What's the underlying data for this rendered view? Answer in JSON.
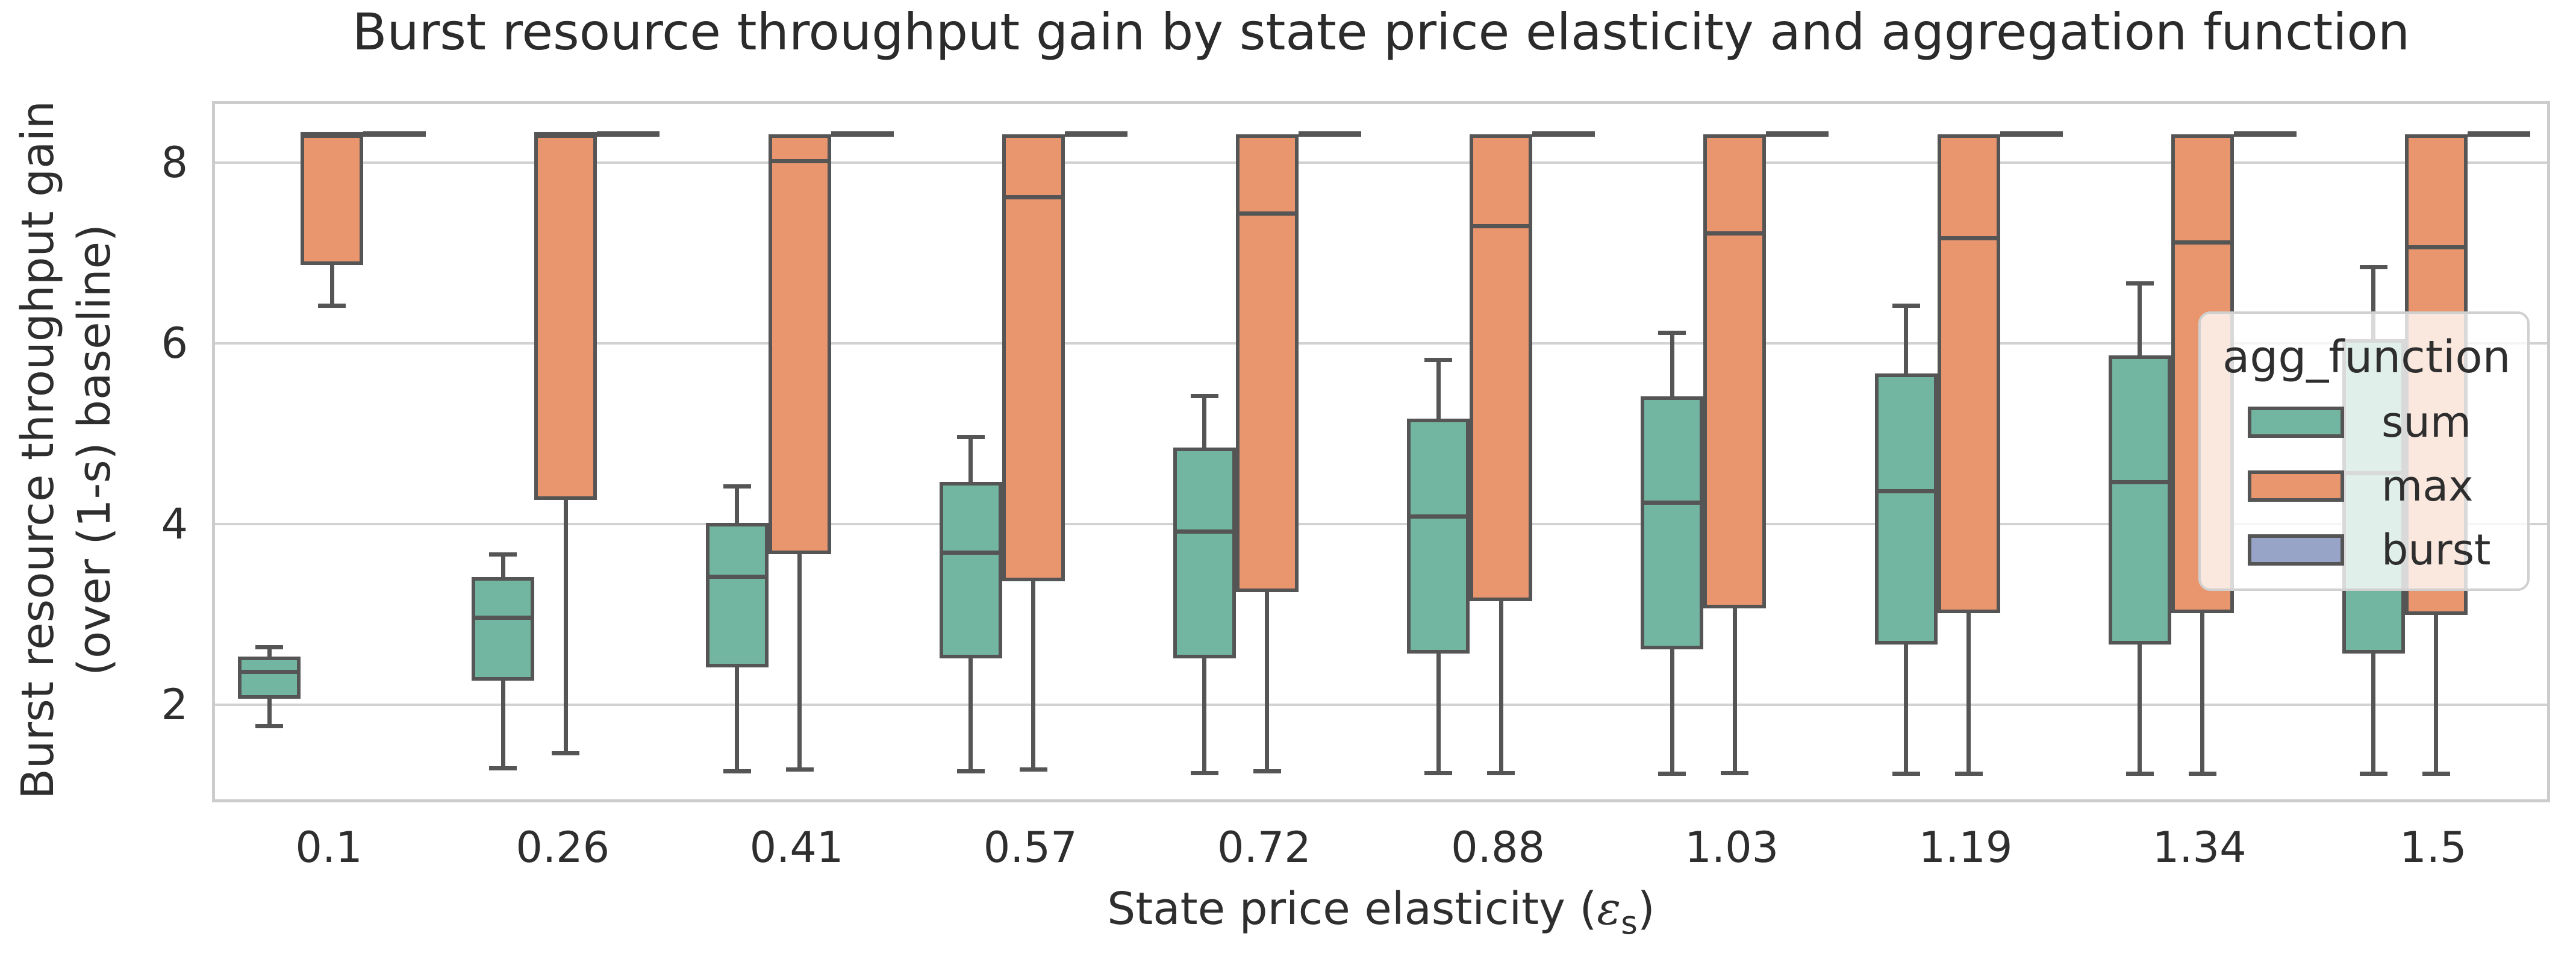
{
  "chart_data": {
    "type": "box",
    "title": "Burst resource throughput gain by state price elasticity and aggregation function",
    "xlabel": {
      "prefix": "State price elasticity (",
      "symbol": "ε",
      "subscript": "s",
      "suffix": ")"
    },
    "ylabel_lines": [
      "Burst resource throughput gain",
      "(over (1-s) baseline)"
    ],
    "categories": [
      "0.1",
      "0.26",
      "0.41",
      "0.57",
      "0.72",
      "0.88",
      "1.03",
      "1.19",
      "1.34",
      "1.5"
    ],
    "ylim": [
      0.92,
      8.68
    ],
    "yticks": [
      2,
      4,
      6,
      8
    ],
    "grid": true,
    "colors": {
      "edge": "#555555",
      "gridline": "#d2d2d2",
      "spine": "#cccccc",
      "text": "#2e2e2e"
    },
    "legend": {
      "title": "agg_function",
      "position": "center right",
      "entries": [
        {
          "label": "sum",
          "color": "#72b5a0"
        },
        {
          "label": "max",
          "color": "#e9966f"
        },
        {
          "label": "burst",
          "color": "#97a4c8"
        }
      ]
    },
    "series": [
      {
        "name": "sum",
        "color": "#72b5a0",
        "boxes": [
          {
            "whislo": 1.8,
            "q1": 2.1,
            "med": 2.4,
            "q3": 2.57,
            "whishi": 2.67
          },
          {
            "whislo": 1.33,
            "q1": 2.3,
            "med": 3.0,
            "q3": 3.45,
            "whishi": 3.7
          },
          {
            "whislo": 1.3,
            "q1": 2.45,
            "med": 3.45,
            "q3": 4.05,
            "whishi": 4.45
          },
          {
            "whislo": 1.3,
            "q1": 2.55,
            "med": 3.72,
            "q3": 4.5,
            "whishi": 5.0
          },
          {
            "whislo": 1.28,
            "q1": 2.55,
            "med": 3.95,
            "q3": 4.88,
            "whishi": 5.45
          },
          {
            "whislo": 1.28,
            "q1": 2.6,
            "med": 4.12,
            "q3": 5.2,
            "whishi": 5.85
          },
          {
            "whislo": 1.27,
            "q1": 2.65,
            "med": 4.27,
            "q3": 5.45,
            "whishi": 6.15
          },
          {
            "whislo": 1.27,
            "q1": 2.7,
            "med": 4.4,
            "q3": 5.7,
            "whishi": 6.45
          },
          {
            "whislo": 1.27,
            "q1": 2.7,
            "med": 4.5,
            "q3": 5.9,
            "whishi": 6.7
          },
          {
            "whislo": 1.27,
            "q1": 2.6,
            "med": 4.6,
            "q3": 6.08,
            "whishi": 6.88
          }
        ]
      },
      {
        "name": "max",
        "color": "#e9966f",
        "boxes": [
          {
            "whislo": 6.45,
            "q1": 6.9,
            "med": 8.35,
            "q3": 8.35,
            "whishi": 8.35
          },
          {
            "whislo": 1.5,
            "q1": 4.3,
            "med": 8.35,
            "q3": 8.35,
            "whishi": 8.35
          },
          {
            "whislo": 1.32,
            "q1": 3.7,
            "med": 8.05,
            "q3": 8.35,
            "whishi": 8.35
          },
          {
            "whislo": 1.32,
            "q1": 3.4,
            "med": 7.65,
            "q3": 8.35,
            "whishi": 8.35
          },
          {
            "whislo": 1.3,
            "q1": 3.28,
            "med": 7.47,
            "q3": 8.35,
            "whishi": 8.35
          },
          {
            "whislo": 1.28,
            "q1": 3.18,
            "med": 7.33,
            "q3": 8.35,
            "whishi": 8.35
          },
          {
            "whislo": 1.28,
            "q1": 3.1,
            "med": 7.25,
            "q3": 8.35,
            "whishi": 8.35
          },
          {
            "whislo": 1.27,
            "q1": 3.05,
            "med": 7.2,
            "q3": 8.35,
            "whishi": 8.35
          },
          {
            "whislo": 1.27,
            "q1": 3.05,
            "med": 7.15,
            "q3": 8.35,
            "whishi": 8.35
          },
          {
            "whislo": 1.27,
            "q1": 3.03,
            "med": 7.1,
            "q3": 8.35,
            "whishi": 8.35
          }
        ]
      },
      {
        "name": "burst",
        "color": "#97a4c8",
        "boxes": [
          {
            "whislo": 8.35,
            "q1": 8.35,
            "med": 8.35,
            "q3": 8.35,
            "whishi": 8.35
          },
          {
            "whislo": 8.35,
            "q1": 8.35,
            "med": 8.35,
            "q3": 8.35,
            "whishi": 8.35
          },
          {
            "whislo": 8.35,
            "q1": 8.35,
            "med": 8.35,
            "q3": 8.35,
            "whishi": 8.35
          },
          {
            "whislo": 8.35,
            "q1": 8.35,
            "med": 8.35,
            "q3": 8.35,
            "whishi": 8.35
          },
          {
            "whislo": 8.35,
            "q1": 8.35,
            "med": 8.35,
            "q3": 8.35,
            "whishi": 8.35
          },
          {
            "whislo": 8.35,
            "q1": 8.35,
            "med": 8.35,
            "q3": 8.35,
            "whishi": 8.35
          },
          {
            "whislo": 8.35,
            "q1": 8.35,
            "med": 8.35,
            "q3": 8.35,
            "whishi": 8.35
          },
          {
            "whislo": 8.35,
            "q1": 8.35,
            "med": 8.35,
            "q3": 8.35,
            "whishi": 8.35
          },
          {
            "whislo": 8.35,
            "q1": 8.35,
            "med": 8.35,
            "q3": 8.35,
            "whishi": 8.35
          },
          {
            "whislo": 8.35,
            "q1": 8.35,
            "med": 8.35,
            "q3": 8.35,
            "whishi": 8.35
          }
        ]
      }
    ]
  }
}
